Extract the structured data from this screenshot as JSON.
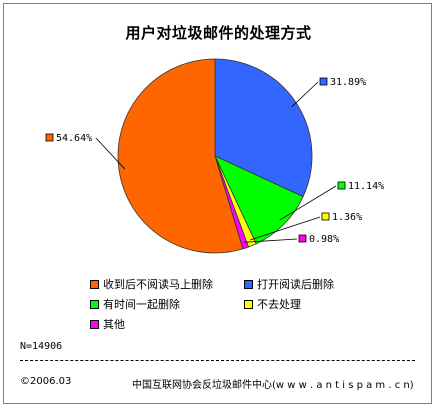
{
  "chart_data": {
    "type": "pie",
    "title": "用户对垃圾邮件的处理方式",
    "categories": [
      "收到后不阅读马上删除",
      "打开阅读后删除",
      "有时间一起删除",
      "不去处理",
      "其他"
    ],
    "values": [
      54.64,
      31.89,
      11.14,
      1.36,
      0.98
    ],
    "value_labels": [
      "54.64%",
      "31.89%",
      "11.14%",
      "1.36%",
      "0.98%"
    ],
    "colors": [
      "#ff6600",
      "#3366ff",
      "#00ff00",
      "#ffff00",
      "#ff00ff"
    ],
    "legend_placement": "bottom"
  },
  "note": "N=14906",
  "copyright": "©2006.03",
  "source": "中国互联网协会反垃圾邮件中心(w w w . a n t i s p a m . c n)"
}
